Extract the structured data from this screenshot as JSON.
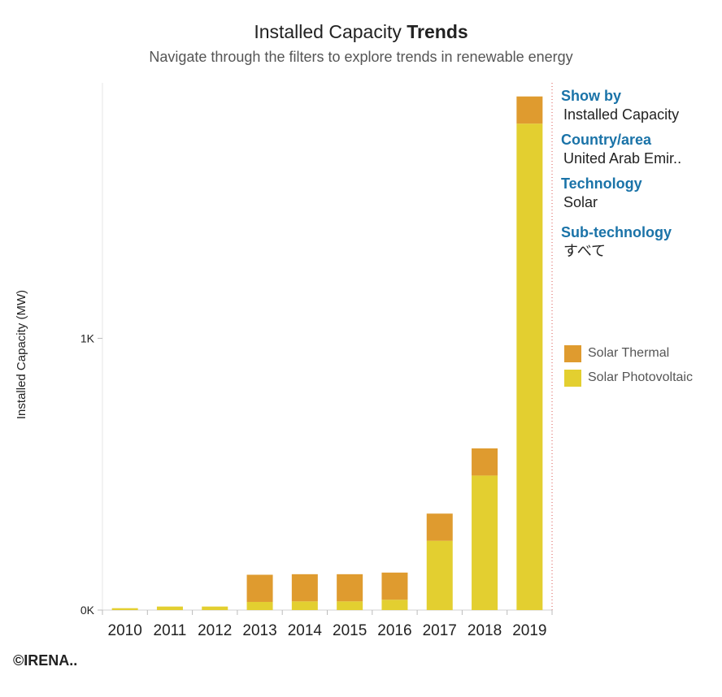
{
  "header": {
    "title_main": "Installed Capacity",
    "title_bold": "Trends",
    "subtitle": "Navigate through the filters to explore trends in renewable energy"
  },
  "filters": {
    "show_by_label": "Show by",
    "show_by_value": "Installed Capacity",
    "country_label": "Country/area",
    "country_value": "United Arab Emir..",
    "technology_label": "Technology",
    "technology_value": "Solar",
    "subtech_label": "Sub-technology",
    "subtech_value": "すべて"
  },
  "legend": [
    {
      "label": "Solar Thermal",
      "color": "#df9b2f"
    },
    {
      "label": "Solar Photovoltaic",
      "color": "#e3cf30"
    }
  ],
  "footer": {
    "copyright": "©IRENA.."
  },
  "chart_data": {
    "type": "bar",
    "stacked": true,
    "title": "Installed Capacity Trends",
    "xlabel": "",
    "ylabel": "Installed Capacity (MW)",
    "ylim": [
      0,
      1940
    ],
    "yticks": [
      {
        "value": 0,
        "label": "0K"
      },
      {
        "value": 1000,
        "label": "1K"
      }
    ],
    "categories": [
      "2010",
      "2011",
      "2012",
      "2013",
      "2014",
      "2015",
      "2016",
      "2017",
      "2018",
      "2019"
    ],
    "series": [
      {
        "name": "Solar Photovoltaic",
        "color": "#e3cf30",
        "values": [
          7,
          13,
          13,
          30,
          32,
          32,
          38,
          255,
          495,
          1790
        ]
      },
      {
        "name": "Solar Thermal",
        "color": "#df9b2f",
        "values": [
          0,
          0,
          0,
          100,
          100,
          100,
          100,
          100,
          100,
          100
        ]
      }
    ]
  }
}
